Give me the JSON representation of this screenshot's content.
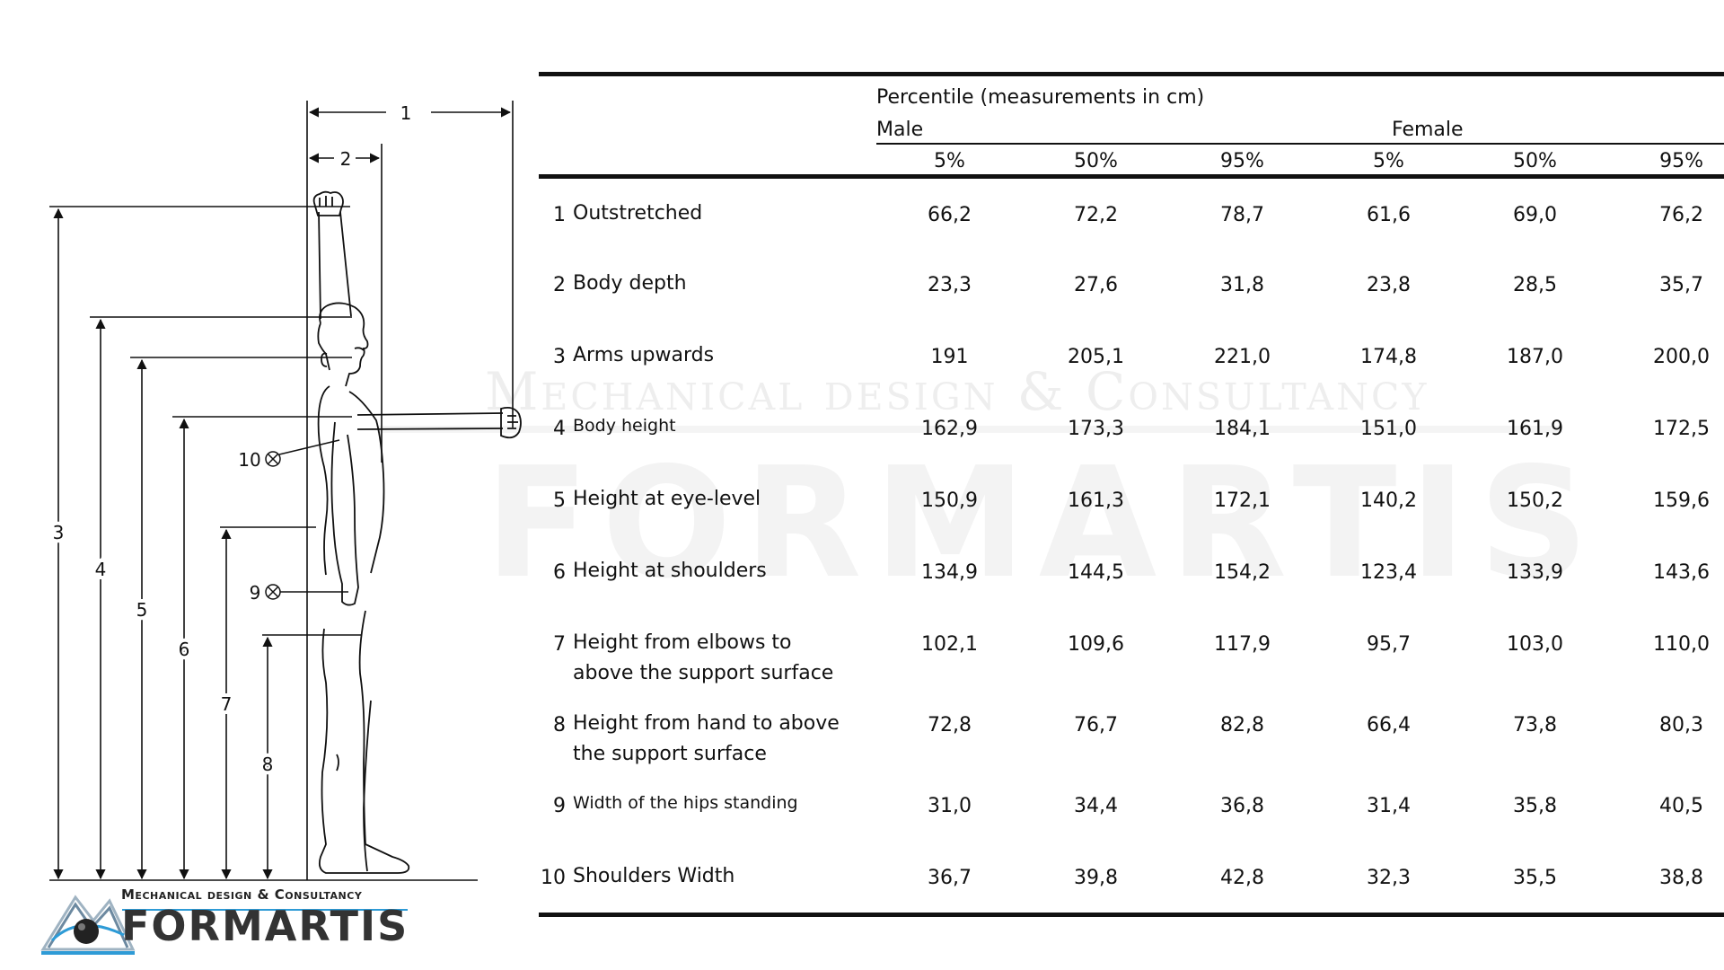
{
  "watermark": {
    "subtitle": "Mechanical design & Consultancy",
    "brand": "FORMARTIS"
  },
  "logo": {
    "subtitle": "Mechanical design & Consultancy",
    "brand": "FORMARTIS",
    "accent_color": "#2e9bd6"
  },
  "figure": {
    "dimension_labels": [
      "1",
      "2",
      "3",
      "4",
      "5",
      "6",
      "7",
      "8",
      "9",
      "10"
    ]
  },
  "table": {
    "header": "Percentile (measurements in cm)",
    "groups": [
      "Male",
      "Female"
    ],
    "columns": [
      "5%",
      "50%",
      "95%",
      "5%",
      "50%",
      "95%"
    ],
    "rows": [
      {
        "num": "1",
        "label": [
          "Outstretched"
        ],
        "values": [
          "66,2",
          "72,2",
          "78,7",
          "61,6",
          "69,0",
          "76,2"
        ]
      },
      {
        "num": "2",
        "label": [
          "Body depth"
        ],
        "values": [
          "23,3",
          "27,6",
          "31,8",
          "23,8",
          "28,5",
          "35,7"
        ]
      },
      {
        "num": "3",
        "label": [
          "Arms upwards"
        ],
        "values": [
          "191",
          "205,1",
          "221,0",
          "174,8",
          "187,0",
          "200,0"
        ]
      },
      {
        "num": "4",
        "label": [
          "Body height"
        ],
        "values": [
          "162,9",
          "173,3",
          "184,1",
          "151,0",
          "161,9",
          "172,5"
        ]
      },
      {
        "num": "5",
        "label": [
          "Height at eye-level"
        ],
        "values": [
          "150,9",
          "161,3",
          "172,1",
          "140,2",
          "150,2",
          "159,6"
        ]
      },
      {
        "num": "6",
        "label": [
          "Height at shoulders"
        ],
        "values": [
          "134,9",
          "144,5",
          "154,2",
          "123,4",
          "133,9",
          "143,6"
        ]
      },
      {
        "num": "7",
        "label": [
          "Height from elbows to",
          "above the support surface"
        ],
        "values": [
          "102,1",
          "109,6",
          "117,9",
          "95,7",
          "103,0",
          "110,0"
        ]
      },
      {
        "num": "8",
        "label": [
          "Height from hand to above",
          "the support surface"
        ],
        "values": [
          "72,8",
          "76,7",
          "82,8",
          "66,4",
          "73,8",
          "80,3"
        ]
      },
      {
        "num": "9",
        "label": [
          "Width of the hips standing"
        ],
        "values": [
          "31,0",
          "34,4",
          "36,8",
          "31,4",
          "35,8",
          "40,5"
        ]
      },
      {
        "num": "10",
        "label": [
          "Shoulders Width"
        ],
        "values": [
          "36,7",
          "39,8",
          "42,8",
          "32,3",
          "35,5",
          "38,8"
        ]
      }
    ]
  }
}
